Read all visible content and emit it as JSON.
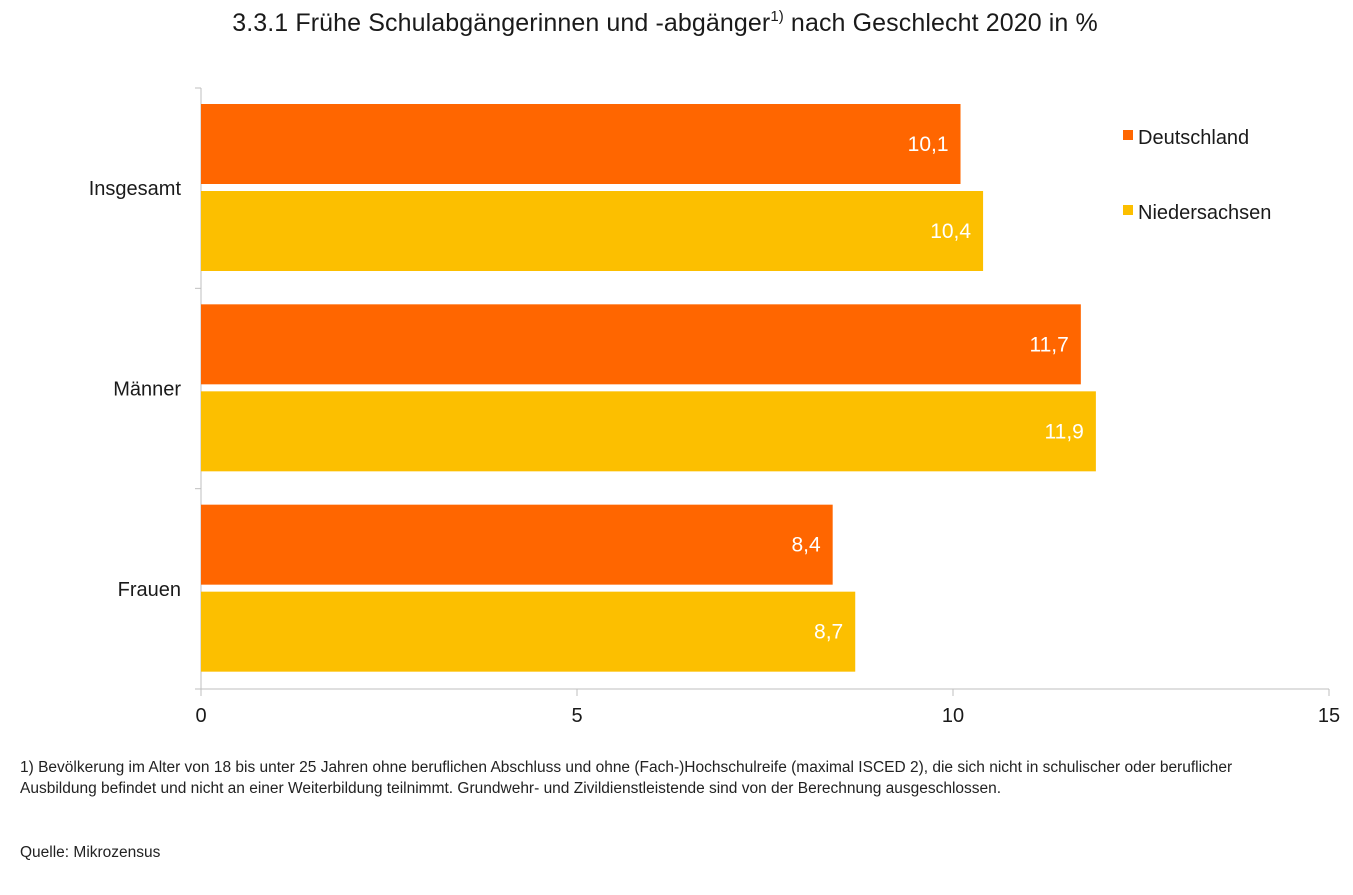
{
  "title": {
    "main": "3.3.1 Frühe Schulabgängerinnen und -abgänger",
    "sup": "1)",
    "rest": " nach Geschlecht 2020 in %"
  },
  "chart_data": {
    "type": "bar",
    "orientation": "horizontal",
    "categories": [
      "Insgesamt",
      "Männer",
      "Frauen"
    ],
    "series": [
      {
        "name": "Deutschland",
        "values": [
          10.1,
          11.7,
          8.4
        ],
        "labels": [
          "10,1",
          "11,7",
          "8,4"
        ],
        "color": "#ff6600"
      },
      {
        "name": "Niedersachsen",
        "values": [
          10.4,
          11.9,
          8.7
        ],
        "labels": [
          "10,4",
          "11,9",
          "8,7"
        ],
        "color": "#fcbf00"
      }
    ],
    "xlim": [
      0,
      15
    ],
    "xticks": [
      0,
      5,
      10,
      15
    ],
    "xtick_labels": [
      "0",
      "5",
      "10",
      "15"
    ],
    "grid": false,
    "legend_position": "top-right"
  },
  "footnote": "1) Bevölkerung im Alter von 18 bis unter 25 Jahren ohne beruflichen Abschluss und ohne (Fach-)Hochschulreife (maximal ISCED 2), die sich nicht in schulischer oder beruflicher Ausbildung befindet und nicht an einer Weiterbildung teilnimmt. Grundwehr- und Zivildienstleistende sind von der Berechnung ausgeschlossen.",
  "source": "Quelle: Mikrozensus"
}
